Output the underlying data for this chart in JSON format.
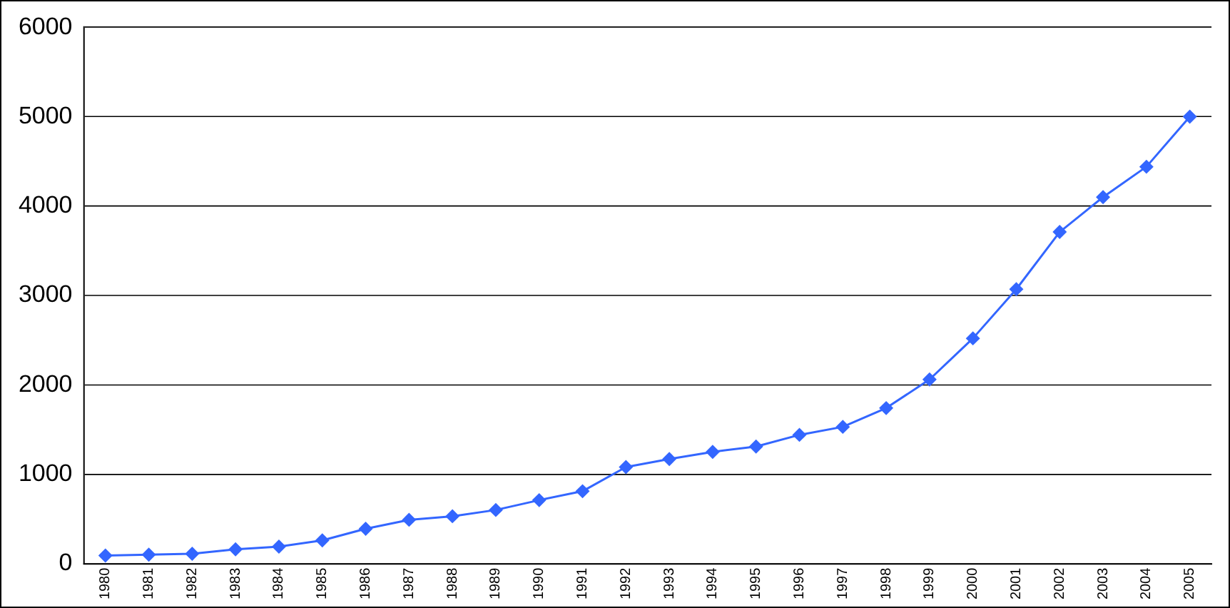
{
  "chart_data": {
    "type": "line",
    "categories": [
      "1980",
      "1981",
      "1982",
      "1983",
      "1984",
      "1985",
      "1986",
      "1987",
      "1988",
      "1989",
      "1990",
      "1991",
      "1992",
      "1993",
      "1994",
      "1995",
      "1996",
      "1997",
      "1998",
      "1999",
      "2000",
      "2001",
      "2002",
      "2003",
      "2004",
      "2005"
    ],
    "series": [
      {
        "color": "#3366ff",
        "values": [
          90,
          100,
          110,
          160,
          190,
          260,
          390,
          490,
          530,
          600,
          710,
          810,
          1080,
          1170,
          1250,
          1310,
          1440,
          1530,
          1740,
          2060,
          2520,
          3070,
          3710,
          4100,
          4440,
          5000
        ]
      }
    ],
    "ylim": [
      0,
      6000
    ],
    "yticks": [
      0,
      1000,
      2000,
      3000,
      4000,
      5000,
      6000
    ],
    "grid": "y",
    "legend": false,
    "marker": "diamond",
    "line_style": "solid"
  }
}
